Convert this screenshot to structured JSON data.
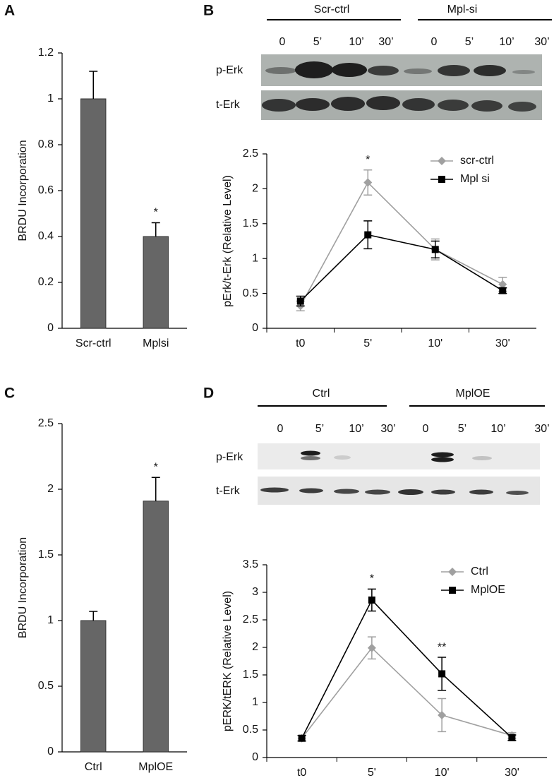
{
  "panel_labels": [
    "A",
    "B",
    "C",
    "D"
  ],
  "blots": [
    {
      "groups": [
        "Scr-ctrl",
        "Mpl-si"
      ],
      "lanes": [
        "0",
        "5’",
        "10’",
        "30’",
        "0",
        "5’",
        "10’",
        "30’"
      ],
      "rows": [
        "p-Erk",
        "t-Erk"
      ]
    },
    {
      "groups": [
        "Ctrl",
        "MplOE"
      ],
      "lanes": [
        "0",
        "5’",
        "10’",
        "30’",
        "0",
        "5’",
        "10’",
        "30’"
      ],
      "rows": [
        "p-Erk",
        "t-Erk"
      ]
    }
  ],
  "chart_data": [
    {
      "type": "bar",
      "y_label": "BRDU Incorporation",
      "categories": [
        "Scr-ctrl",
        "Mplsi"
      ],
      "values": [
        1,
        0.4
      ],
      "errors": [
        0.12,
        0.06
      ],
      "color": "#666666",
      "ylim": [
        0,
        1.2
      ],
      "yticks": [
        0,
        0.2,
        0.4,
        0.6,
        0.8,
        1,
        1.2
      ],
      "annotations": [
        {
          "text": "*",
          "x": "Mplsi"
        }
      ]
    },
    {
      "type": "line",
      "y_label": "pErk/t-Erk (Relative Level)",
      "categories": [
        "t0",
        "5'",
        "10'",
        "30'"
      ],
      "series": [
        {
          "name": "scr-ctrl",
          "color": "#a0a0a0",
          "marker": "diamond",
          "values": [
            0.32,
            2.09,
            1.13,
            0.63
          ],
          "errors": [
            0.07,
            0.18,
            0.15,
            0.1
          ]
        },
        {
          "name": "Mpl si",
          "color": "#000000",
          "marker": "square",
          "values": [
            0.39,
            1.34,
            1.13,
            0.54
          ],
          "errors": [
            0.07,
            0.2,
            0.12,
            0.04
          ]
        }
      ],
      "ylim": [
        0,
        2.5
      ],
      "yticks": [
        0,
        0.5,
        1,
        1.5,
        2,
        2.5
      ],
      "legend": "upper right",
      "annotations": [
        {
          "text": "*",
          "x": "5'"
        }
      ]
    },
    {
      "type": "bar",
      "y_label": "BRDU Incorporation",
      "categories": [
        "Ctrl",
        "MplOE"
      ],
      "values": [
        1,
        1.91
      ],
      "errors": [
        0.07,
        0.18
      ],
      "color": "#666666",
      "ylim": [
        0,
        2.5
      ],
      "yticks": [
        0,
        0.5,
        1,
        1.5,
        2,
        2.5
      ],
      "annotations": [
        {
          "text": "*",
          "x": "MplOE"
        }
      ]
    },
    {
      "type": "line",
      "y_label": "pERK/tERK (Relative Level)",
      "categories": [
        "t0",
        "5'",
        "10'",
        "30'"
      ],
      "series": [
        {
          "name": "Ctrl",
          "color": "#a0a0a0",
          "marker": "diamond",
          "values": [
            0.35,
            1.99,
            0.77,
            0.4
          ],
          "errors": [
            0.05,
            0.2,
            0.3,
            0.05
          ]
        },
        {
          "name": "MplOE",
          "color": "#000000",
          "marker": "square",
          "values": [
            0.35,
            2.86,
            1.52,
            0.36
          ],
          "errors": [
            0.05,
            0.2,
            0.3,
            0.05
          ]
        }
      ],
      "ylim": [
        0,
        3.5
      ],
      "yticks": [
        0,
        0.5,
        1,
        1.5,
        2,
        2.5,
        3,
        3.5
      ],
      "legend": "upper right",
      "annotations": [
        {
          "text": "*",
          "x": "5'"
        },
        {
          "text": "**",
          "x": "10'"
        }
      ]
    }
  ]
}
